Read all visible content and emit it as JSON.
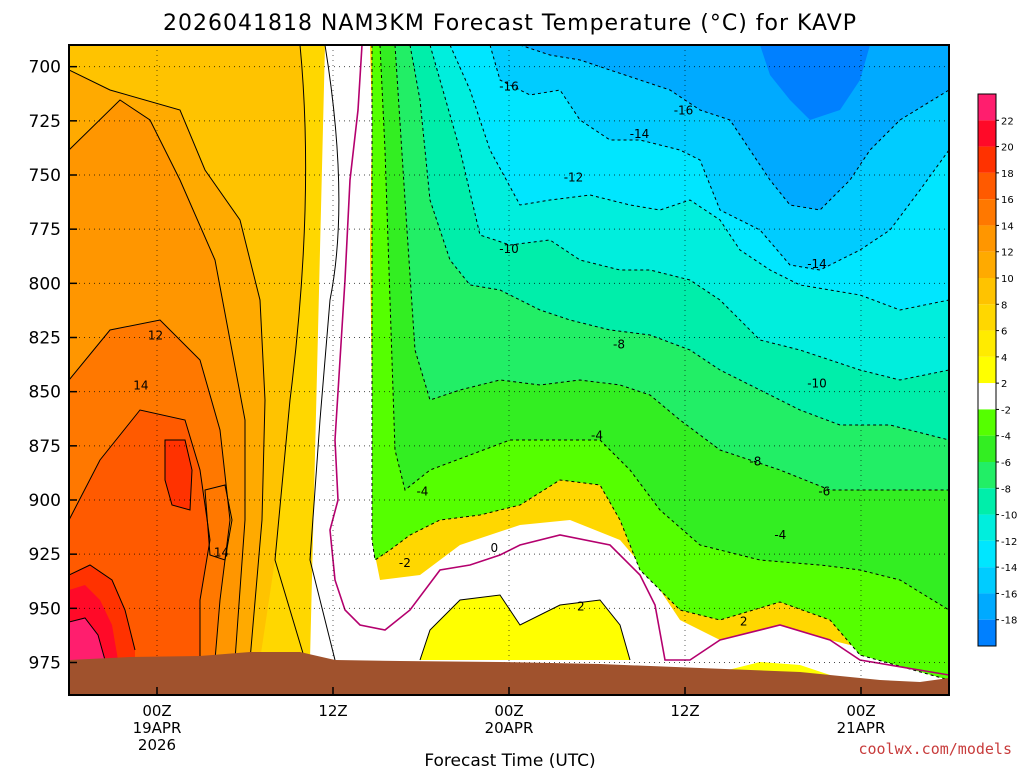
{
  "chart_data": {
    "type": "heatmap",
    "title": "2026041818 NAM3KM Forecast Temperature (°C) for KAVP",
    "xlabel": "Forecast Time (UTC)",
    "ylabel": "",
    "credit": "coolwx.com/models",
    "x_ticks": [
      {
        "hour": 6,
        "lines": [
          "00Z",
          "19APR",
          "2026"
        ]
      },
      {
        "hour": 18,
        "lines": [
          "12Z"
        ]
      },
      {
        "hour": 30,
        "lines": [
          "00Z",
          "20APR"
        ]
      },
      {
        "hour": 42,
        "lines": [
          "12Z"
        ]
      },
      {
        "hour": 54,
        "lines": [
          "00Z",
          "21APR"
        ]
      }
    ],
    "xlim": [
      0,
      60
    ],
    "y_ticks": [
      700,
      725,
      750,
      775,
      800,
      825,
      850,
      875,
      900,
      925,
      950,
      975
    ],
    "ylim": [
      690,
      990
    ],
    "colorbar": {
      "levels": [
        22,
        20,
        18,
        16,
        14,
        12,
        10,
        8,
        6,
        4,
        2,
        -2,
        -4,
        -6,
        -8,
        -10,
        -12,
        -14,
        -16,
        -18
      ],
      "colors": [
        "#ff1e6e",
        "#ff0a28",
        "#ff3200",
        "#ff5a00",
        "#ff7800",
        "#ff9600",
        "#ffaa00",
        "#ffc300",
        "#ffd700",
        "#ffeb00",
        "#ffff00",
        "#ffffff",
        "#55ff00",
        "#33ee22",
        "#22ee66",
        "#00eeaa",
        "#00eedd",
        "#00e6ff",
        "#00ccff",
        "#00aaff",
        "#0080ff"
      ]
    },
    "contour_labels": [
      {
        "text": "-16",
        "hour": 30.0,
        "p": 711
      },
      {
        "text": "-16",
        "hour": 41.9,
        "p": 722
      },
      {
        "text": "-14",
        "hour": 38.9,
        "p": 733
      },
      {
        "text": "-12",
        "hour": 34.4,
        "p": 753
      },
      {
        "text": "-10",
        "hour": 30.0,
        "p": 786
      },
      {
        "text": "-14",
        "hour": 51.0,
        "p": 793
      },
      {
        "text": "-8",
        "hour": 37.5,
        "p": 830
      },
      {
        "text": "-10",
        "hour": 51.0,
        "p": 848
      },
      {
        "text": "-4",
        "hour": 36.0,
        "p": 872
      },
      {
        "text": "-8",
        "hour": 46.8,
        "p": 884
      },
      {
        "text": "-6",
        "hour": 51.5,
        "p": 898
      },
      {
        "text": "-4",
        "hour": 48.5,
        "p": 918
      },
      {
        "text": "-4",
        "hour": 24.1,
        "p": 898
      },
      {
        "text": "-2",
        "hour": 22.9,
        "p": 931
      },
      {
        "text": "0",
        "hour": 29.0,
        "p": 924
      },
      {
        "text": "2",
        "hour": 34.9,
        "p": 951
      },
      {
        "text": "2",
        "hour": 46.0,
        "p": 958
      },
      {
        "text": "12",
        "hour": 5.9,
        "p": 826
      },
      {
        "text": "14",
        "hour": 4.9,
        "p": 849
      },
      {
        "text": "14",
        "hour": 10.4,
        "p": 926
      }
    ]
  }
}
